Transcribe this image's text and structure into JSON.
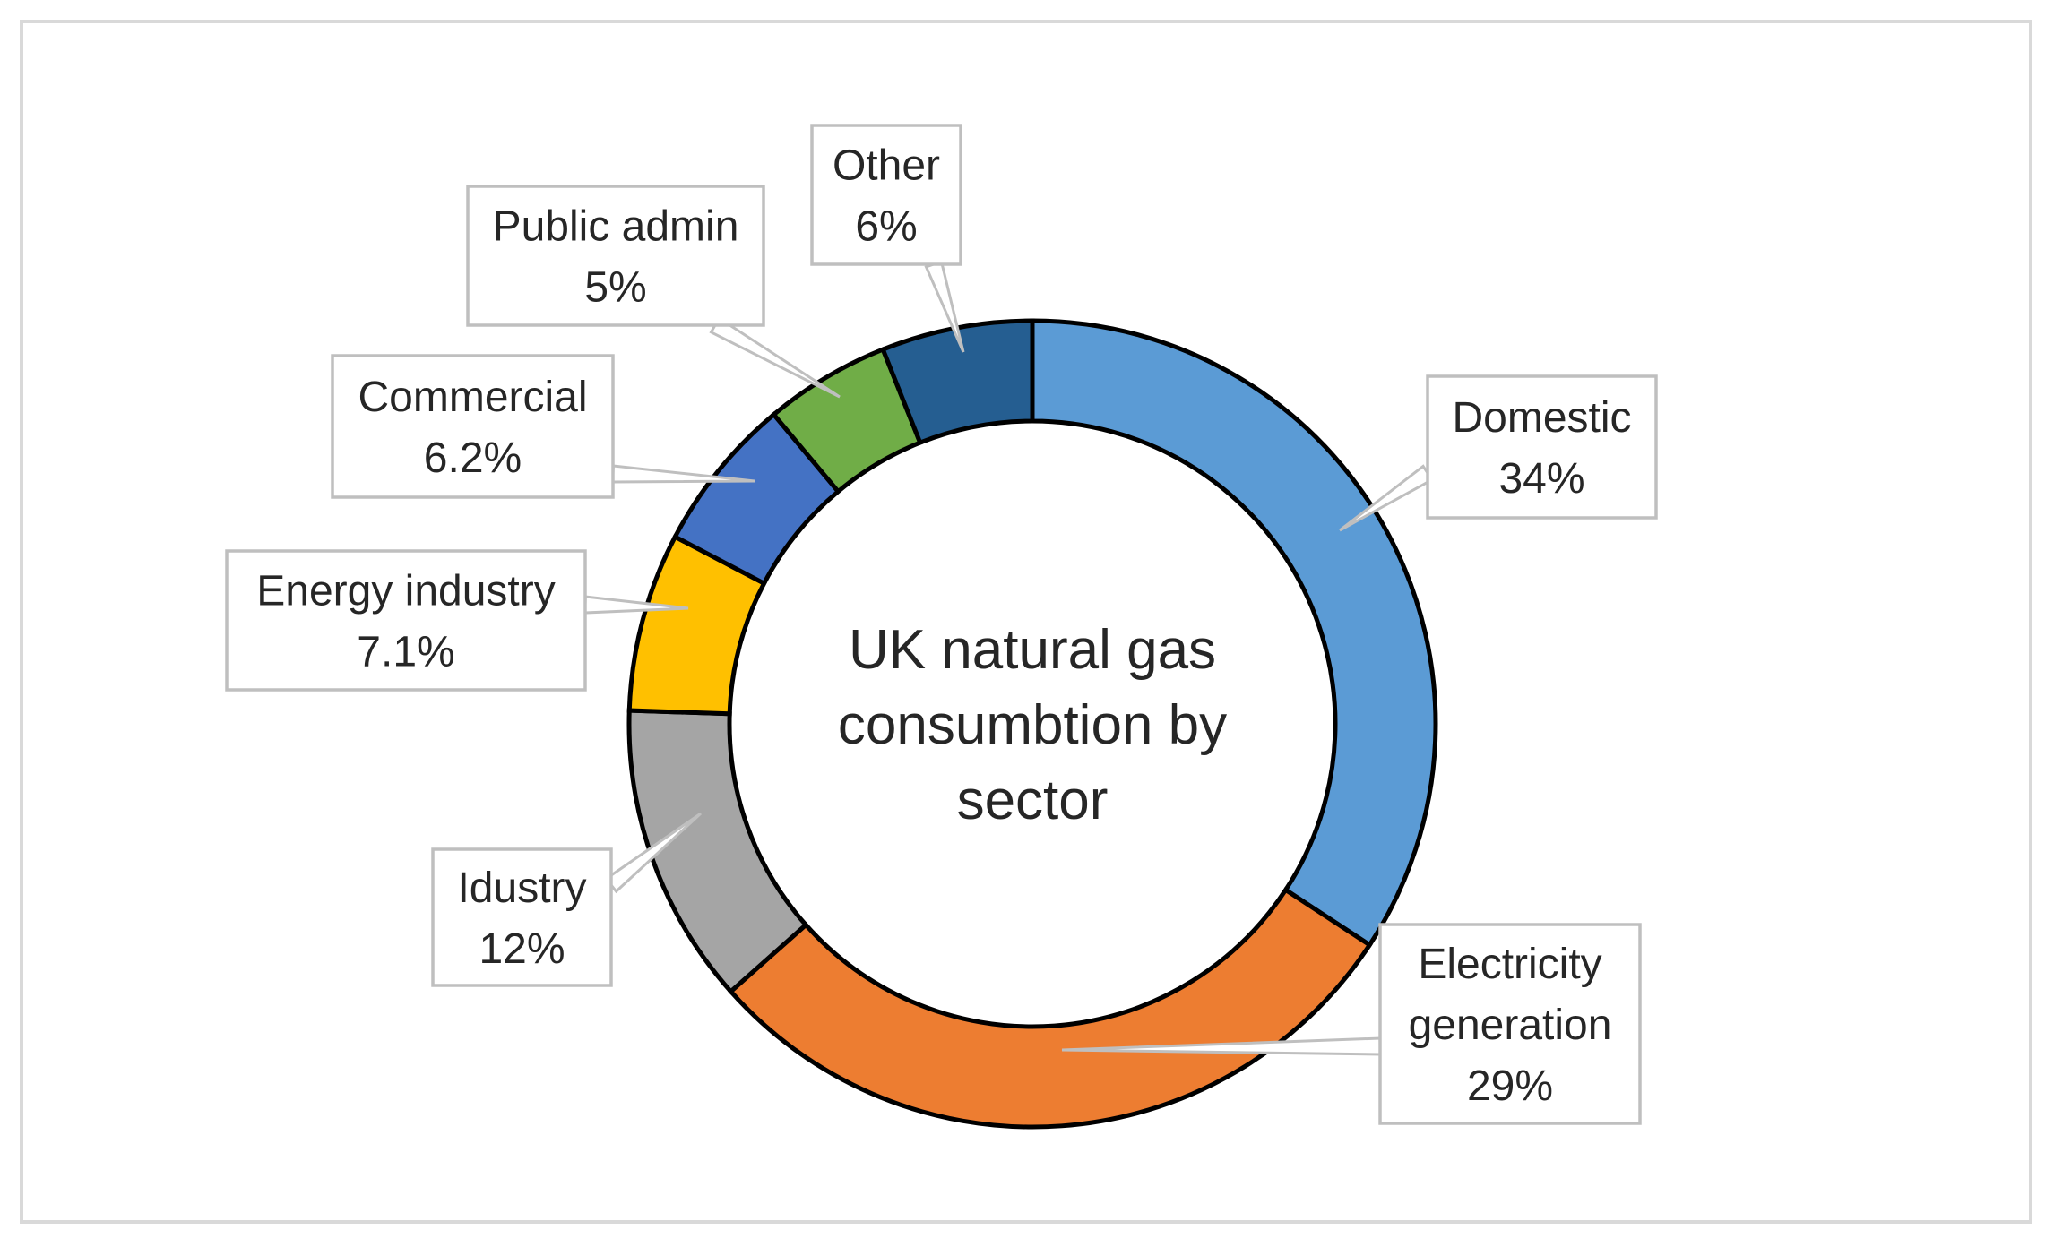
{
  "chart_data": {
    "type": "pie",
    "variant": "doughnut",
    "center_title_lines": [
      "UK natural gas",
      "consumbtion by",
      "sector"
    ],
    "slices": [
      {
        "label_lines": [
          "Domestic"
        ],
        "value": 34,
        "value_label": "34%",
        "color": "#5b9bd5"
      },
      {
        "label_lines": [
          "Electricity",
          "generation"
        ],
        "value": 29,
        "value_label": "29%",
        "color": "#ed7d31"
      },
      {
        "label_lines": [
          "Idustry"
        ],
        "value": 12,
        "value_label": "12%",
        "color": "#a5a5a5"
      },
      {
        "label_lines": [
          "Energy industry"
        ],
        "value": 7.1,
        "value_label": "7.1%",
        "color": "#ffc000"
      },
      {
        "label_lines": [
          "Commercial"
        ],
        "value": 6.2,
        "value_label": "6.2%",
        "color": "#4472c4"
      },
      {
        "label_lines": [
          "Public admin"
        ],
        "value": 5,
        "value_label": "5%",
        "color": "#70ad47"
      },
      {
        "label_lines": [
          "Other"
        ],
        "value": 6,
        "value_label": "6%",
        "color": "#255e91"
      }
    ],
    "start_angle": "12 o'clock",
    "direction": "clockwise",
    "label_style": "callout boxes with leader lines",
    "legend": "none"
  }
}
